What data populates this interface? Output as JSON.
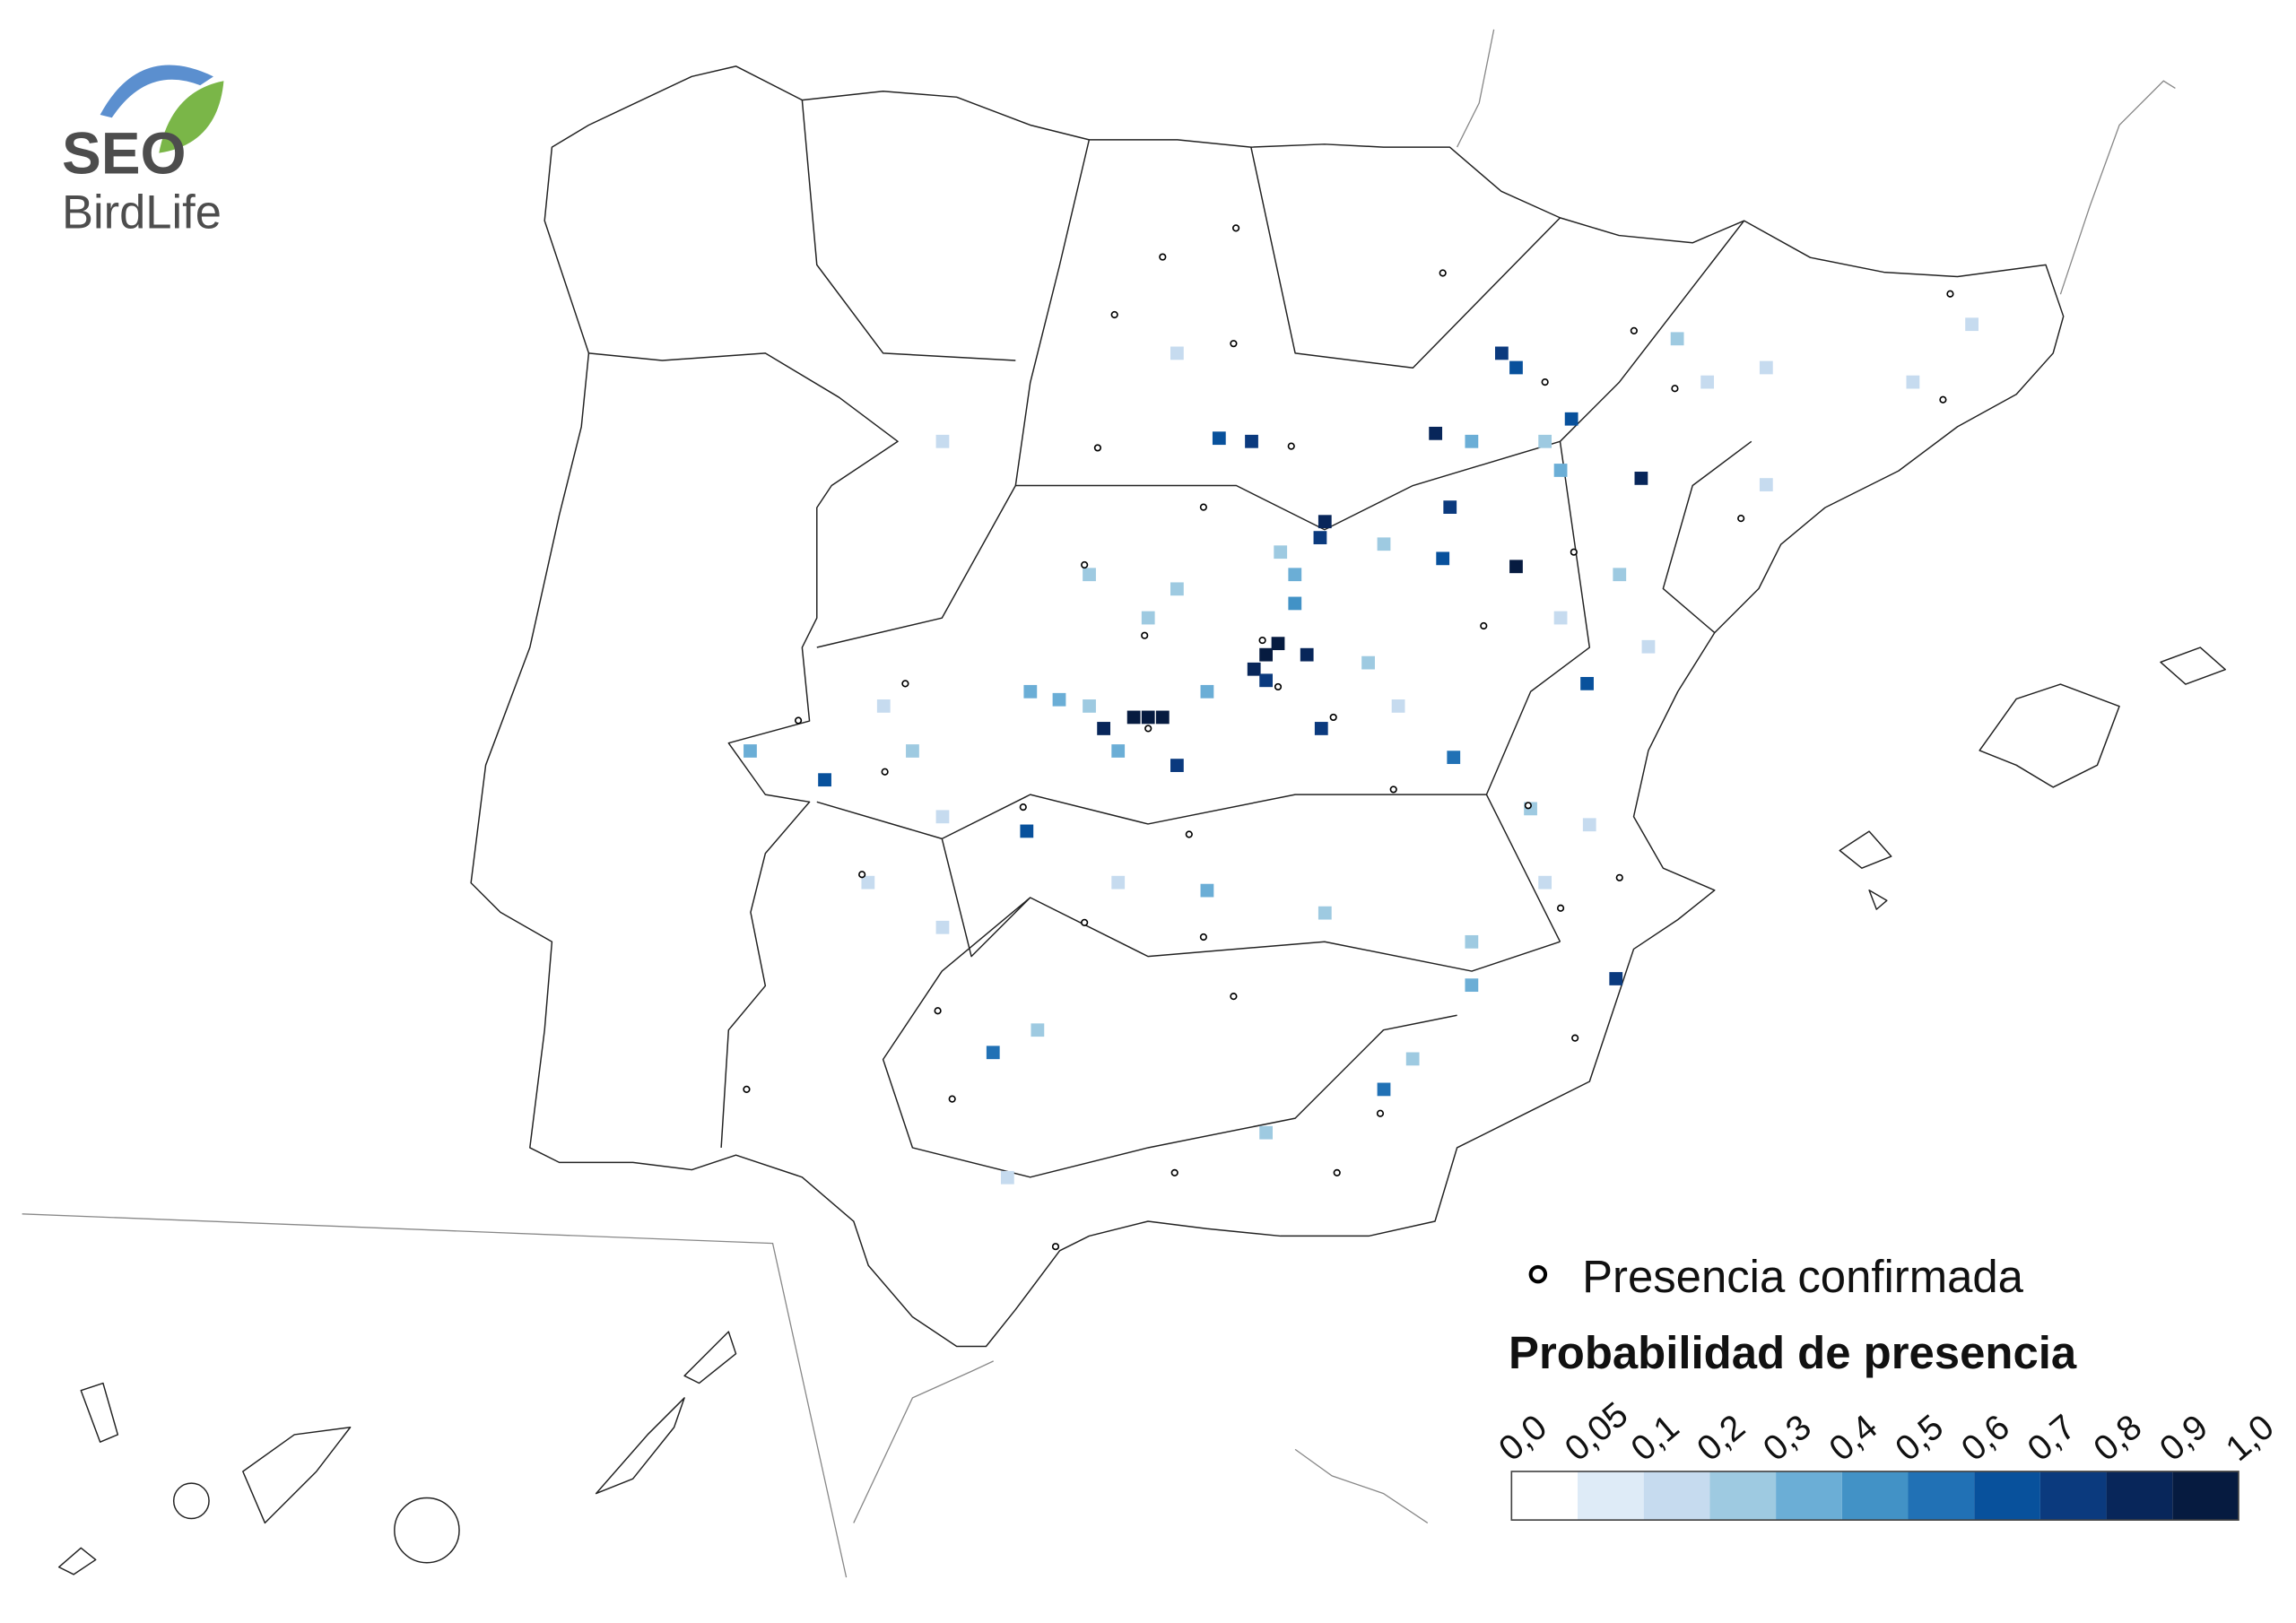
{
  "logo": {
    "line1": "SEO",
    "line2": "BirdLife"
  },
  "legend": {
    "points_label": "Presencia confirmada",
    "title": "Probabilidad de presencia",
    "ticks": [
      {
        "value": 0,
        "label": "0,0"
      },
      {
        "value": 0.05,
        "label": "0,05"
      },
      {
        "value": 0.1,
        "label": "0,1"
      },
      {
        "value": 0.2,
        "label": "0,2"
      },
      {
        "value": 0.3,
        "label": "0,3"
      },
      {
        "value": 0.4,
        "label": "0,4"
      },
      {
        "value": 0.5,
        "label": "0,5"
      },
      {
        "value": 0.6,
        "label": "0,6"
      },
      {
        "value": 0.7,
        "label": "0,7"
      },
      {
        "value": 0.8,
        "label": "0,8"
      },
      {
        "value": 0.9,
        "label": "0,9"
      },
      {
        "value": 1,
        "label": "1,0"
      }
    ],
    "colors": [
      "#ffffff",
      "#deebf7",
      "#c6dbef",
      "#9ecae1",
      "#6baed6",
      "#4292c6",
      "#2171b5",
      "#08519c",
      "#0b3a7e",
      "#08265a",
      "#061b40"
    ]
  },
  "cells": [
    [
      -4.4,
      39.97,
      0.9
    ],
    [
      -4.28,
      39.97,
      0.9
    ],
    [
      -4.16,
      39.97,
      0.95
    ],
    [
      -4.65,
      39.9,
      0.8
    ],
    [
      -3.3,
      40.36,
      0.9
    ],
    [
      -3.2,
      40.43,
      0.95
    ],
    [
      -3.4,
      40.27,
      0.8
    ],
    [
      -3.3,
      40.2,
      0.7
    ],
    [
      -2.96,
      40.36,
      0.85
    ],
    [
      -4.04,
      39.67,
      0.7
    ],
    [
      -1.22,
      42.15,
      0.6
    ],
    [
      -1.34,
      42.24,
      0.7
    ],
    [
      -1.89,
      41.74,
      0.8
    ],
    [
      -1.77,
      41.28,
      0.7
    ],
    [
      -0.18,
      41.46,
      0.8
    ],
    [
      -0.76,
      41.83,
      0.6
    ],
    [
      -1.22,
      40.91,
      0.9
    ],
    [
      -2.81,
      41.19,
      0.8
    ],
    [
      -2.85,
      41.09,
      0.7
    ],
    [
      -3.69,
      41.71,
      0.6
    ],
    [
      -3.42,
      41.69,
      0.7
    ],
    [
      -0.63,
      40.18,
      0.6
    ],
    [
      -0.39,
      38.34,
      0.7
    ],
    [
      -2.32,
      37.65,
      0.5
    ],
    [
      -5.57,
      37.88,
      0.5
    ],
    [
      -6.97,
      39.58,
      0.6
    ],
    [
      -5.29,
      39.26,
      0.6
    ],
    [
      -1.83,
      40.96,
      0.6
    ],
    [
      -2.84,
      39.9,
      0.7
    ],
    [
      -1.74,
      39.72,
      0.5
    ],
    [
      -5.26,
      40.13,
      0.3
    ],
    [
      -5.02,
      40.08,
      0.3
    ],
    [
      -4.77,
      40.04,
      0.2
    ],
    [
      -4.53,
      39.76,
      0.3
    ],
    [
      -3.79,
      40.13,
      0.3
    ],
    [
      -3.06,
      40.68,
      0.4
    ],
    [
      -3.06,
      40.86,
      0.3
    ],
    [
      -3.18,
      41.0,
      0.2
    ],
    [
      -2.32,
      41.05,
      0.2
    ],
    [
      -1.59,
      41.69,
      0.3
    ],
    [
      -0.98,
      41.69,
      0.2
    ],
    [
      -0.85,
      41.51,
      0.3
    ],
    [
      0.12,
      42.33,
      0.2
    ],
    [
      0.37,
      42.06,
      0.1
    ],
    [
      0.86,
      42.15,
      0.1
    ],
    [
      -0.36,
      40.86,
      0.2
    ],
    [
      -0.12,
      40.41,
      0.1
    ],
    [
      -6.48,
      40.04,
      0.1
    ],
    [
      -6.24,
      39.76,
      0.2
    ],
    [
      -7.59,
      39.76,
      0.3
    ],
    [
      -6.61,
      38.94,
      0.1
    ],
    [
      -5.99,
      38.66,
      0.1
    ],
    [
      -4.53,
      38.94,
      0.1
    ],
    [
      -3.79,
      38.89,
      0.3
    ],
    [
      -2.81,
      38.75,
      0.2
    ],
    [
      -1.59,
      38.57,
      0.2
    ],
    [
      -1.59,
      38.3,
      0.3
    ],
    [
      -2.08,
      37.84,
      0.2
    ],
    [
      -3.3,
      37.38,
      0.2
    ],
    [
      -5.99,
      39.35,
      0.1
    ],
    [
      -4.28,
      40.59,
      0.2
    ],
    [
      -4.04,
      40.77,
      0.2
    ],
    [
      -4.77,
      40.86,
      0.2
    ],
    [
      -5.99,
      41.69,
      0.1
    ],
    [
      -4.04,
      42.24,
      0.1
    ],
    [
      2.08,
      42.06,
      0.1
    ],
    [
      2.57,
      42.42,
      0.1
    ],
    [
      0.86,
      41.42,
      0.1
    ],
    [
      -1.1,
      39.4,
      0.2
    ],
    [
      -0.61,
      39.3,
      0.1
    ],
    [
      -0.98,
      38.94,
      0.1
    ],
    [
      -5.45,
      37.1,
      0.1
    ],
    [
      -5.2,
      38.02,
      0.2
    ],
    [
      -2.2,
      40.04,
      0.1
    ],
    [
      -2.45,
      40.31,
      0.2
    ],
    [
      -0.85,
      40.59,
      0.1
    ]
  ],
  "points": [
    [
      -3.55,
      43.02
    ],
    [
      -4.16,
      42.84
    ],
    [
      -4.56,
      42.48
    ],
    [
      -3.57,
      42.3
    ],
    [
      -4.7,
      41.65
    ],
    [
      -3.82,
      41.28
    ],
    [
      -3.09,
      41.66
    ],
    [
      -1.83,
      42.74
    ],
    [
      -0.98,
      42.06
    ],
    [
      -0.24,
      42.38
    ],
    [
      0.1,
      42.02
    ],
    [
      -0.74,
      41.0
    ],
    [
      -1.49,
      40.54
    ],
    [
      -4.31,
      40.48
    ],
    [
      -4.81,
      40.92
    ],
    [
      -3.33,
      40.45
    ],
    [
      -3.2,
      40.16
    ],
    [
      -4.28,
      39.9
    ],
    [
      -2.74,
      39.97
    ],
    [
      -6.3,
      40.18
    ],
    [
      -7.19,
      39.95
    ],
    [
      -6.47,
      39.63
    ],
    [
      -5.32,
      39.41
    ],
    [
      -3.94,
      39.24
    ],
    [
      -6.66,
      38.99
    ],
    [
      -4.81,
      38.69
    ],
    [
      -3.82,
      38.6
    ],
    [
      -3.57,
      38.23
    ],
    [
      -6.03,
      38.14
    ],
    [
      -7.62,
      37.65
    ],
    [
      -5.91,
      37.59
    ],
    [
      -4.06,
      37.13
    ],
    [
      -2.71,
      37.13
    ],
    [
      -2.35,
      37.5
    ],
    [
      -5.05,
      36.67
    ],
    [
      -2.24,
      39.52
    ],
    [
      -1.12,
      39.42
    ],
    [
      -0.36,
      38.97
    ],
    [
      -0.85,
      38.78
    ],
    [
      -0.73,
      37.97
    ],
    [
      0.65,
      41.21
    ],
    [
      2.33,
      41.95
    ],
    [
      2.39,
      42.61
    ]
  ]
}
